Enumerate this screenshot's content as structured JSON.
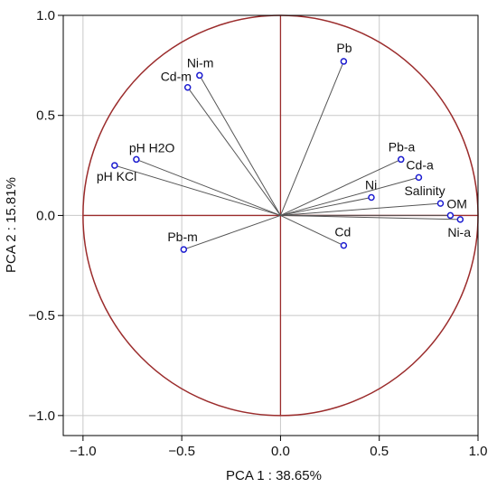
{
  "chart_data": {
    "type": "scatter",
    "subtype": "pca-correlation-circle",
    "title": "",
    "xlabel": "PCA 1 : 38.65%",
    "ylabel": "PCA 2 : 15.81%",
    "xlim": [
      -1.1,
      1.0
    ],
    "ylim": [
      -1.1,
      1.0
    ],
    "xticks": [
      -1.0,
      -0.5,
      0.0,
      0.5,
      1.0
    ],
    "yticks": [
      -1.0,
      -0.5,
      0.0,
      0.5,
      1.0
    ],
    "xtick_labels": [
      "−1.0",
      "−0.5",
      "0.0",
      "0.5",
      "1.0"
    ],
    "ytick_labels": [
      "−1.0",
      "−0.5",
      "0.0",
      "0.5",
      "1.0"
    ],
    "grid": true,
    "unit_circle": true,
    "vectors_from_origin": true,
    "colors": {
      "circle": "#9b2c2c",
      "zero_lines": "#9b2c2c",
      "vectors": "#555555",
      "markers": "#1c1cd0",
      "grid": "#c8c8c8",
      "frame": "#000000"
    },
    "points": [
      {
        "label": "Pb",
        "x": 0.32,
        "y": 0.77
      },
      {
        "label": "Ni-m",
        "x": -0.41,
        "y": 0.7
      },
      {
        "label": "Cd-m",
        "x": -0.47,
        "y": 0.64
      },
      {
        "label": "pH H2O",
        "x": -0.73,
        "y": 0.28
      },
      {
        "label": "pH KCl",
        "x": -0.84,
        "y": 0.25
      },
      {
        "label": "Pb-a",
        "x": 0.61,
        "y": 0.28
      },
      {
        "label": "Cd-a",
        "x": 0.7,
        "y": 0.19
      },
      {
        "label": "Ni",
        "x": 0.46,
        "y": 0.09
      },
      {
        "label": "Salinity",
        "x": 0.81,
        "y": 0.06
      },
      {
        "label": "OM",
        "x": 0.86,
        "y": 0.0
      },
      {
        "label": "Ni-a",
        "x": 0.91,
        "y": -0.02
      },
      {
        "label": "Cd",
        "x": 0.32,
        "y": -0.15
      },
      {
        "label": "Pb-m",
        "x": -0.49,
        "y": -0.17
      }
    ]
  }
}
